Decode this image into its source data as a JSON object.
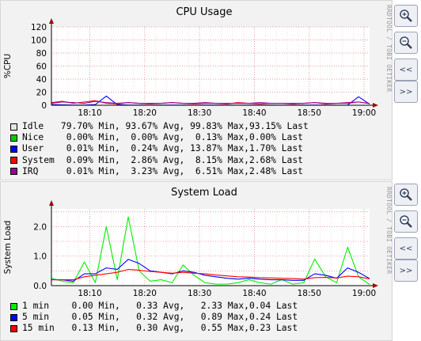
{
  "charts": [
    {
      "title": "CPU Usage",
      "ylabel": "%CPU",
      "ylim": [
        0,
        120
      ],
      "yticks": [
        "0",
        "20",
        "40",
        "60",
        "80",
        "100",
        "120"
      ],
      "xticks": [
        "18:10",
        "18:20",
        "18:30",
        "18:40",
        "18:50",
        "19:00"
      ],
      "side_text": "RRDTOOL / TOBI OETIKER",
      "legend": [
        {
          "color": "#e6e6e6",
          "name": "Idle",
          "min": "79.70% Min,",
          "avg": "93.67% Avg,",
          "max": "99.83% Max,",
          "last": "93.15% Last"
        },
        {
          "color": "#00cc00",
          "name": "Nice",
          "min": "0.00% Min,",
          "avg": "0.00% Avg,",
          "max": "0.13% Max,",
          "last": "0.00% Last"
        },
        {
          "color": "#0000ff",
          "name": "User",
          "min": "0.01% Min,",
          "avg": "0.24% Avg,",
          "max": "13.87% Max,",
          "last": "1.70% Last"
        },
        {
          "color": "#ff0000",
          "name": "System",
          "min": "0.09% Min,",
          "avg": "2.86% Avg,",
          "max": "8.15% Max,",
          "last": "2.68% Last"
        },
        {
          "color": "#990099",
          "name": "IRQ",
          "min": "0.01% Min,",
          "avg": "3.23% Avg,",
          "max": "6.51% Max,",
          "last": "2.48% Last"
        }
      ]
    },
    {
      "title": "System Load",
      "ylabel": "System Load",
      "ylim": [
        0,
        2.6
      ],
      "yticks": [
        "0.0",
        "1.0",
        "2.0"
      ],
      "xticks": [
        "18:10",
        "18:20",
        "18:30",
        "18:40",
        "18:50",
        "19:00"
      ],
      "side_text": "RRDTOOL / TOBI OETIKER",
      "legend": [
        {
          "color": "#00ee00",
          "name": "1 min",
          "min": "0.00 Min,",
          "avg": "0.33 Avg,",
          "max": "2.33 Max,",
          "last": "0.04 Last"
        },
        {
          "color": "#0000ff",
          "name": "5 min",
          "min": "0.05 Min,",
          "avg": "0.32 Avg,",
          "max": "0.89 Max,",
          "last": "0.24 Last"
        },
        {
          "color": "#ff0000",
          "name": "15 min",
          "min": "0.13 Min,",
          "avg": "0.30 Avg,",
          "max": "0.55 Max,",
          "last": "0.23 Last"
        }
      ]
    }
  ],
  "chart_data": [
    {
      "type": "line",
      "title": "CPU Usage",
      "ylabel": "%CPU",
      "xlabel": "",
      "ylim": [
        0,
        120
      ],
      "x": [
        "18:03",
        "18:05",
        "18:07",
        "18:09",
        "18:11",
        "18:13",
        "18:15",
        "18:17",
        "18:19",
        "18:21",
        "18:23",
        "18:25",
        "18:27",
        "18:29",
        "18:31",
        "18:33",
        "18:35",
        "18:37",
        "18:39",
        "18:41",
        "18:43",
        "18:45",
        "18:47",
        "18:49",
        "18:51",
        "18:53",
        "18:55",
        "18:57",
        "18:59",
        "19:01"
      ],
      "series": [
        {
          "name": "Nice",
          "color": "#00cc00",
          "values": [
            0,
            0,
            0,
            0,
            0,
            0,
            0,
            0,
            0,
            0,
            0,
            0,
            0,
            0,
            0,
            0,
            0,
            0,
            0,
            0,
            0,
            0,
            0,
            0,
            0,
            0,
            0,
            0,
            0,
            0
          ]
        },
        {
          "name": "User",
          "color": "#0000ff",
          "values": [
            1,
            0.5,
            0.3,
            0.2,
            1,
            14,
            1,
            0.3,
            0.2,
            0.1,
            0.2,
            0.3,
            0.2,
            0.1,
            0.3,
            0.2,
            0.2,
            0.1,
            0.2,
            0.3,
            0.2,
            0.1,
            0.2,
            0.3,
            0.2,
            0.2,
            0.1,
            0.3,
            13,
            1.7
          ]
        },
        {
          "name": "System",
          "color": "#ff0000",
          "values": [
            4,
            6,
            3,
            5,
            7,
            3,
            2,
            4,
            3,
            2,
            3,
            4,
            3,
            2,
            3,
            3,
            2,
            4,
            3,
            2,
            3,
            3,
            2,
            3,
            4,
            2,
            3,
            3,
            5,
            2.7
          ]
        },
        {
          "name": "IRQ",
          "color": "#990099",
          "values": [
            3,
            5,
            4,
            3,
            6,
            4,
            3,
            4,
            3,
            3,
            3,
            4,
            3,
            3,
            4,
            3,
            3,
            3,
            3,
            4,
            3,
            3,
            3,
            3,
            4,
            3,
            3,
            4,
            5,
            2.5
          ]
        }
      ]
    },
    {
      "type": "line",
      "title": "System Load",
      "ylabel": "System Load",
      "xlabel": "",
      "ylim": [
        0,
        2.6
      ],
      "x": [
        "18:03",
        "18:05",
        "18:07",
        "18:09",
        "18:11",
        "18:13",
        "18:15",
        "18:17",
        "18:19",
        "18:21",
        "18:23",
        "18:25",
        "18:27",
        "18:29",
        "18:31",
        "18:33",
        "18:35",
        "18:37",
        "18:39",
        "18:41",
        "18:43",
        "18:45",
        "18:47",
        "18:49",
        "18:51",
        "18:53",
        "18:55",
        "18:57",
        "18:59",
        "19:01"
      ],
      "series": [
        {
          "name": "1 min",
          "color": "#00ee00",
          "values": [
            0.25,
            0.15,
            0.1,
            0.8,
            0.1,
            2.0,
            0.2,
            2.33,
            0.5,
            0.15,
            0.2,
            0.1,
            0.7,
            0.35,
            0.1,
            0.05,
            0.05,
            0.1,
            0.2,
            0.1,
            0.05,
            0.2,
            0.05,
            0.1,
            0.9,
            0.3,
            0.1,
            1.3,
            0.3,
            0.04
          ]
        },
        {
          "name": "5 min",
          "color": "#0000ff",
          "values": [
            0.2,
            0.2,
            0.15,
            0.4,
            0.4,
            0.6,
            0.55,
            0.89,
            0.75,
            0.5,
            0.45,
            0.4,
            0.5,
            0.45,
            0.35,
            0.3,
            0.25,
            0.22,
            0.25,
            0.22,
            0.2,
            0.2,
            0.18,
            0.18,
            0.4,
            0.35,
            0.25,
            0.6,
            0.45,
            0.24
          ]
        },
        {
          "name": "15 min",
          "color": "#ff0000",
          "values": [
            0.2,
            0.2,
            0.2,
            0.3,
            0.35,
            0.4,
            0.45,
            0.55,
            0.52,
            0.48,
            0.45,
            0.42,
            0.45,
            0.42,
            0.4,
            0.36,
            0.33,
            0.3,
            0.29,
            0.27,
            0.26,
            0.25,
            0.24,
            0.22,
            0.27,
            0.28,
            0.26,
            0.32,
            0.3,
            0.23
          ]
        }
      ]
    }
  ]
}
